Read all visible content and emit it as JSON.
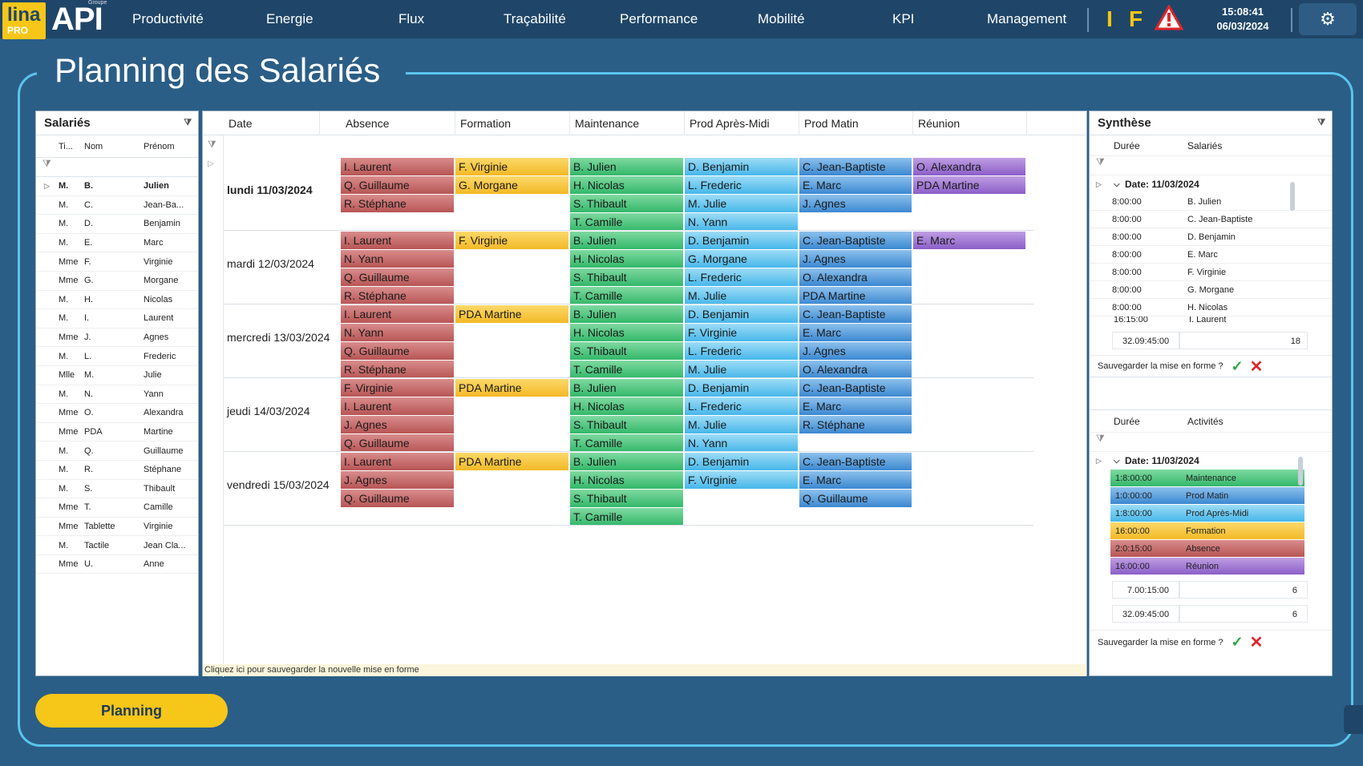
{
  "logo": {
    "lina": "lina",
    "pro": "PRO",
    "api": "API",
    "groupe": "Groupe"
  },
  "nav": [
    "Productivité",
    "Energie",
    "Flux",
    "Traçabilité",
    "Performance",
    "Mobilité",
    "KPI",
    "Management"
  ],
  "indicators": {
    "i": "I",
    "f": "F"
  },
  "clock": {
    "time": "15:08:41",
    "date": "06/03/2024"
  },
  "page_title": "Planning des Salariés",
  "salaries": {
    "title": "Salariés",
    "columns": [
      "Ti...",
      "Nom",
      "Prénom"
    ],
    "rows": [
      [
        "M.",
        "B.",
        "Julien"
      ],
      [
        "M.",
        "C.",
        "Jean-Ba..."
      ],
      [
        "M.",
        "D.",
        "Benjamin"
      ],
      [
        "M.",
        "E.",
        "Marc"
      ],
      [
        "Mme",
        "F.",
        "Virginie"
      ],
      [
        "Mme",
        "G.",
        "Morgane"
      ],
      [
        "M.",
        "H.",
        "Nicolas"
      ],
      [
        "M.",
        "I.",
        "Laurent"
      ],
      [
        "Mme",
        "J.",
        "Agnes"
      ],
      [
        "M.",
        "L.",
        "Frederic"
      ],
      [
        "Mlle",
        "M.",
        "Julie"
      ],
      [
        "M.",
        "N.",
        "Yann"
      ],
      [
        "Mme",
        "O.",
        "Alexandra"
      ],
      [
        "Mme",
        "PDA",
        "Martine"
      ],
      [
        "M.",
        "Q.",
        "Guillaume"
      ],
      [
        "M.",
        "R.",
        "Stéphane"
      ],
      [
        "M.",
        "S.",
        "Thibault"
      ],
      [
        "Mme",
        "T.",
        "Camille"
      ],
      [
        "Mme",
        "Tablette",
        "Virginie"
      ],
      [
        "M.",
        "Tactile",
        "Jean Cla..."
      ],
      [
        "Mme",
        "U.",
        "Anne"
      ]
    ]
  },
  "planning": {
    "columns": [
      "Date",
      "Absence",
      "Formation",
      "Maintenance",
      "Prod Après-Midi",
      "Prod Matin",
      "Réunion"
    ],
    "days": [
      {
        "label": "lundi 11/03/2024",
        "rows": 4,
        "Absence": [
          "I. Laurent",
          "Q. Guillaume",
          "R. Stéphane"
        ],
        "Formation": [
          "F. Virginie",
          "G. Morgane"
        ],
        "Maintenance": [
          "B. Julien",
          "H. Nicolas",
          "S. Thibault",
          "T. Camille"
        ],
        "ProdAM": [
          "D. Benjamin",
          "L. Frederic",
          "M. Julie",
          "N. Yann"
        ],
        "ProdMatin": [
          "C. Jean-Baptiste",
          "E. Marc",
          "J. Agnes"
        ],
        "Reunion": [
          "O. Alexandra",
          "PDA Martine"
        ]
      },
      {
        "label": "mardi 12/03/2024",
        "rows": 4,
        "Absence": [
          "I. Laurent",
          "N. Yann",
          "Q. Guillaume",
          "R. Stéphane"
        ],
        "Formation": [
          "F. Virginie"
        ],
        "Maintenance": [
          "B. Julien",
          "H. Nicolas",
          "S. Thibault",
          "T. Camille"
        ],
        "ProdAM": [
          "D. Benjamin",
          "G. Morgane",
          "L. Frederic",
          "M. Julie"
        ],
        "ProdMatin": [
          "C. Jean-Baptiste",
          "J. Agnes",
          "O. Alexandra",
          "PDA Martine"
        ],
        "Reunion": [
          "E. Marc"
        ]
      },
      {
        "label": "mercredi 13/03/2024",
        "rows": 4,
        "Absence": [
          "I. Laurent",
          "N. Yann",
          "Q. Guillaume",
          "R. Stéphane"
        ],
        "Formation": [
          "PDA Martine"
        ],
        "Maintenance": [
          "B. Julien",
          "H. Nicolas",
          "S. Thibault",
          "T. Camille"
        ],
        "ProdAM": [
          "D. Benjamin",
          "F. Virginie",
          "L. Frederic",
          "M. Julie"
        ],
        "ProdMatin": [
          "C. Jean-Baptiste",
          "E. Marc",
          "J. Agnes",
          "O. Alexandra"
        ],
        "Reunion": []
      },
      {
        "label": "jeudi 14/03/2024",
        "rows": 4,
        "Absence": [
          "F. Virginie",
          "I. Laurent",
          "J. Agnes",
          "Q. Guillaume"
        ],
        "Formation": [
          "PDA Martine"
        ],
        "Maintenance": [
          "B. Julien",
          "H. Nicolas",
          "S. Thibault",
          "T. Camille"
        ],
        "ProdAM": [
          "D. Benjamin",
          "L. Frederic",
          "M. Julie",
          "N. Yann"
        ],
        "ProdMatin": [
          "C. Jean-Baptiste",
          "E. Marc",
          "R. Stéphane"
        ],
        "Reunion": []
      },
      {
        "label": "vendredi 15/03/2024",
        "rows": 4,
        "Absence": [
          "I. Laurent",
          "J. Agnes",
          "Q. Guillaume"
        ],
        "Formation": [
          "PDA Martine"
        ],
        "Maintenance": [
          "B. Julien",
          "H. Nicolas",
          "S. Thibault",
          "T. Camille"
        ],
        "ProdAM": [
          "D. Benjamin",
          "F. Virginie"
        ],
        "ProdMatin": [
          "C. Jean-Baptiste",
          "E. Marc",
          "Q. Guillaume"
        ],
        "Reunion": []
      }
    ],
    "footer": "Cliquez ici pour sauvegarder la nouvelle mise en forme"
  },
  "synthese": {
    "title": "Synthèse",
    "top": {
      "columns": [
        "Durée",
        "Salariés"
      ],
      "group": "Date: 11/03/2024",
      "rows": [
        [
          "8:00:00",
          "B. Julien"
        ],
        [
          "8:00:00",
          "C. Jean-Baptiste"
        ],
        [
          "8:00:00",
          "D. Benjamin"
        ],
        [
          "8:00:00",
          "E. Marc"
        ],
        [
          "8:00:00",
          "F. Virginie"
        ],
        [
          "8:00:00",
          "G. Morgane"
        ],
        [
          "8:00:00",
          "H. Nicolas"
        ]
      ],
      "partial_row": [
        "16:15:00",
        "I. Laurent"
      ],
      "total_duration": "32.09:45:00",
      "total_count": "18",
      "save_label": "Sauvegarder la mise en forme ?"
    },
    "bottom": {
      "columns": [
        "Durée",
        "Activités"
      ],
      "group": "Date: 11/03/2024",
      "rows": [
        [
          "1:8:00:00",
          "Maintenance"
        ],
        [
          "1:0:00:00",
          "Prod Matin"
        ],
        [
          "1:8:00:00",
          "Prod Après-Midi"
        ],
        [
          "16:00:00",
          "Formation"
        ],
        [
          "2:0:15:00",
          "Absence"
        ],
        [
          "16:00:00",
          "Réunion"
        ]
      ],
      "group_total_duration": "7.00:15:00",
      "group_total_count": "6",
      "total_duration": "32.09:45:00",
      "total_count": "6",
      "save_label": "Sauvegarder la mise en forme ?"
    }
  },
  "button_planning": "Planning",
  "colors": {
    "absence": "#c06464",
    "formation": "#f5c232",
    "maintenance": "#44c077",
    "prod_am": "#5cc2ef",
    "prod_matin": "#4a92d8",
    "reunion": "#9a6cd0",
    "accent": "#f6c619"
  },
  "icons": [
    "filter-icon",
    "warning-icon",
    "gear-icon",
    "check-icon",
    "cross-icon",
    "expand-icon",
    "collapse-icon"
  ]
}
